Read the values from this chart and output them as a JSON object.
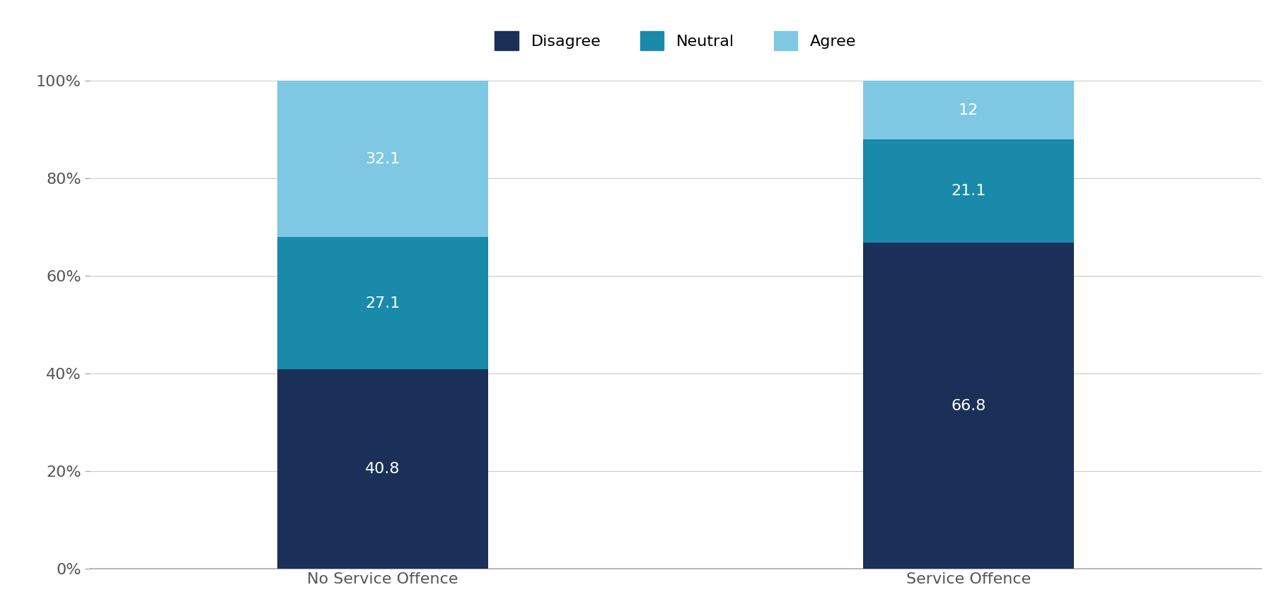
{
  "categories": [
    "No Service Offence",
    "Service Offence"
  ],
  "series": {
    "Disagree": [
      40.8,
      66.8
    ],
    "Neutral": [
      27.1,
      21.1
    ],
    "Agree": [
      32.1,
      12.0
    ]
  },
  "colors": {
    "Disagree": "#1a3059",
    "Neutral": "#1a8aaa",
    "Agree": "#7ec8e3"
  },
  "bar_width": 0.18,
  "x_positions": [
    0.25,
    0.75
  ],
  "xlim": [
    0.0,
    1.0
  ],
  "ylim": [
    0,
    100
  ],
  "yticks": [
    0,
    20,
    40,
    60,
    80,
    100
  ],
  "ytick_labels": [
    "0%",
    "20%",
    "40%",
    "60%",
    "80%",
    "100%"
  ],
  "legend_order": [
    "Disagree",
    "Neutral",
    "Agree"
  ],
  "text_color": "#ffffff",
  "text_fontsize": 16,
  "axis_label_fontsize": 16,
  "legend_fontsize": 16,
  "background_color": "#ffffff",
  "spine_color": "#aaaaaa",
  "grid_color": "#cccccc",
  "tick_color": "#aaaaaa",
  "label_color": "#555555"
}
